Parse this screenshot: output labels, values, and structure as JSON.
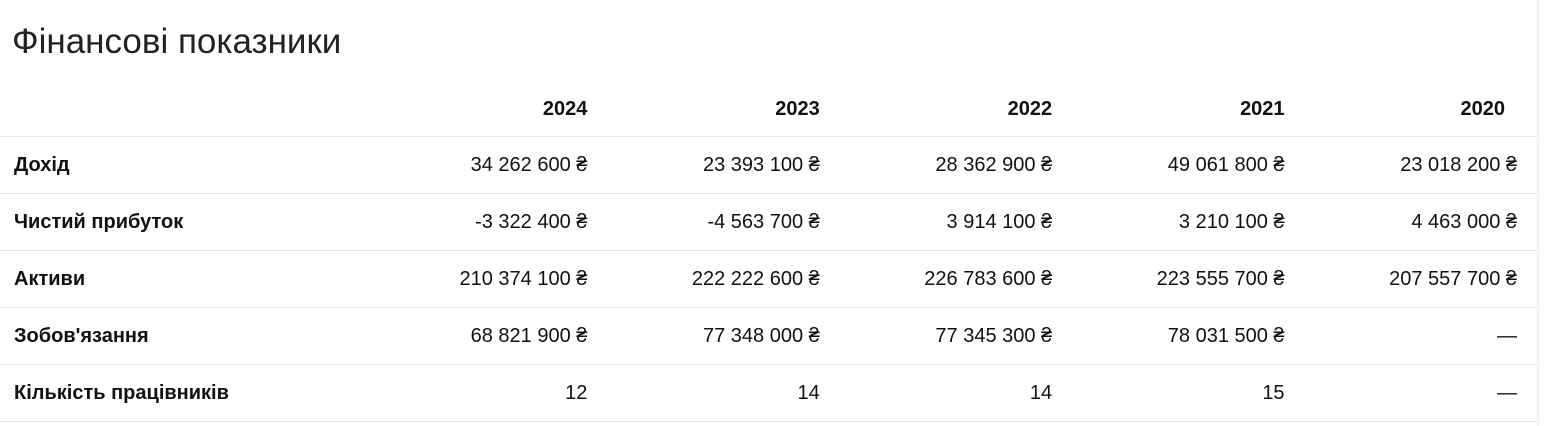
{
  "title": "Фінансові показники",
  "table": {
    "header": [
      "",
      "2024",
      "2023",
      "2022",
      "2021",
      "2020"
    ],
    "rows": [
      [
        "Дохід",
        "34 262 600 ₴",
        "23 393 100 ₴",
        "28 362 900 ₴",
        "49 061 800 ₴",
        "23 018 200 ₴"
      ],
      [
        "Чистий прибуток",
        "-3 322 400 ₴",
        "-4 563 700 ₴",
        "3 914 100 ₴",
        "3 210 100 ₴",
        "4 463 000 ₴"
      ],
      [
        "Активи",
        "210 374 100 ₴",
        "222 222 600 ₴",
        "226 783 600 ₴",
        "223 555 700 ₴",
        "207 557 700 ₴"
      ],
      [
        "Зобов'язання",
        "68 821 900 ₴",
        "77 348 000 ₴",
        "77 345 300 ₴",
        "78 031 500 ₴",
        "—"
      ],
      [
        "Кількість працівників",
        "12",
        "14",
        "14",
        "15",
        "—"
      ]
    ]
  }
}
